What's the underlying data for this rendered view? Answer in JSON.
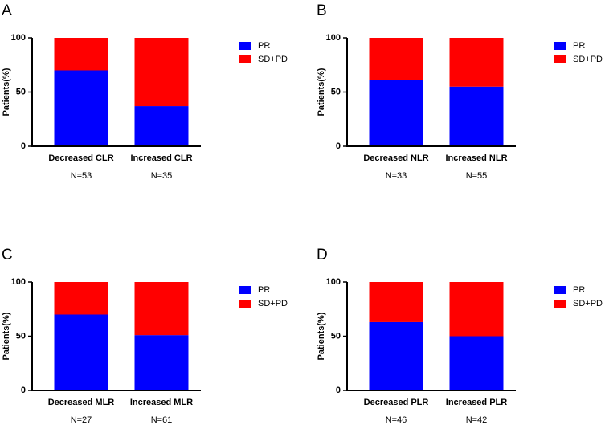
{
  "chart_data": [
    {
      "type": "bar",
      "stacked": true,
      "panel": "A",
      "ylabel": "Patients(%)",
      "categories": [
        "Decreased CLR",
        "Increased CLR"
      ],
      "annotations": [
        "N=53",
        "N=35"
      ],
      "series": [
        {
          "name": "PR",
          "color": "#0000ff",
          "values": [
            70,
            37
          ]
        },
        {
          "name": "SD+PD",
          "color": "#ff0000",
          "values": [
            30,
            63
          ]
        }
      ],
      "ylim": [
        0,
        100
      ],
      "yticks": [
        0,
        50,
        100
      ]
    },
    {
      "type": "bar",
      "stacked": true,
      "panel": "B",
      "ylabel": "Patients(%)",
      "categories": [
        "Decreased NLR",
        "Increased NLR"
      ],
      "annotations": [
        "N=33",
        "N=55"
      ],
      "series": [
        {
          "name": "PR",
          "color": "#0000ff",
          "values": [
            61,
            55
          ]
        },
        {
          "name": "SD+PD",
          "color": "#ff0000",
          "values": [
            39,
            45
          ]
        }
      ],
      "ylim": [
        0,
        100
      ],
      "yticks": [
        0,
        50,
        100
      ]
    },
    {
      "type": "bar",
      "stacked": true,
      "panel": "C",
      "ylabel": "Patients(%)",
      "categories": [
        "Decreased MLR",
        "Increased MLR"
      ],
      "annotations": [
        "N=27",
        "N=61"
      ],
      "series": [
        {
          "name": "PR",
          "color": "#0000ff",
          "values": [
            70,
            51
          ]
        },
        {
          "name": "SD+PD",
          "color": "#ff0000",
          "values": [
            30,
            49
          ]
        }
      ],
      "ylim": [
        0,
        100
      ],
      "yticks": [
        0,
        50,
        100
      ]
    },
    {
      "type": "bar",
      "stacked": true,
      "panel": "D",
      "ylabel": "Patients(%)",
      "categories": [
        "Decreased PLR",
        "Increased PLR"
      ],
      "annotations": [
        "N=46",
        "N=42"
      ],
      "series": [
        {
          "name": "PR",
          "color": "#0000ff",
          "values": [
            63,
            50
          ]
        },
        {
          "name": "SD+PD",
          "color": "#ff0000",
          "values": [
            37,
            50
          ]
        }
      ],
      "ylim": [
        0,
        100
      ],
      "yticks": [
        0,
        50,
        100
      ]
    }
  ]
}
